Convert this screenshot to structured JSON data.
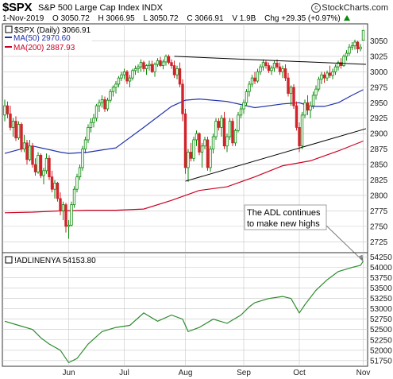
{
  "header": {
    "symbol": "$SPX",
    "name": "S&P 500 Large Cap Index INDX",
    "logo": "StockCharts.com",
    "logo_icon": "copyright-icon",
    "date": "1-Nov-2019",
    "open": "O 3050.72",
    "high": "H 3066.95",
    "low": "L 3050.72",
    "close": "C 3066.91",
    "volume": "V 1.9B",
    "change": "Chg +29.35 (+0.97%)",
    "up_color": "#0a8a0a"
  },
  "legend": {
    "price": "$SPX (Daily) 3066.91",
    "ma50": "MA(50) 2970.60",
    "ma200": "MA(200) 2887.93"
  },
  "colors": {
    "up": "#0a8a0a",
    "down": "#d2222a",
    "ma50": "#2233aa",
    "ma200": "#cc0022",
    "adl": "#2e8b2e",
    "grid": "#c8c8c8"
  },
  "chart_data": [
    {
      "type": "candlestick",
      "title": "$SPX (Daily) 3066.91",
      "x_months": [
        {
          "label": "Jun",
          "day": 23
        },
        {
          "label": "Jul",
          "day": 43
        },
        {
          "label": "Aug",
          "day": 65
        },
        {
          "label": "Sep",
          "day": 86
        },
        {
          "label": "Oct",
          "day": 106
        },
        {
          "label": "Nov",
          "day": 129
        }
      ],
      "x_range": [
        0,
        130
      ],
      "ylim": [
        2710,
        3075
      ],
      "yticks": [
        2725,
        2750,
        2775,
        2800,
        2825,
        2850,
        2875,
        2900,
        2925,
        2950,
        2975,
        3000,
        3025,
        3050
      ],
      "grid": true,
      "series": [
        {
          "name": "MA(50) 2970.60",
          "x": [
            0,
            10,
            20,
            23,
            30,
            40,
            50,
            60,
            65,
            70,
            80,
            90,
            100,
            106,
            110,
            115,
            120,
            125,
            129
          ],
          "y": [
            2868,
            2880,
            2870,
            2868,
            2870,
            2877,
            2910,
            2944,
            2954,
            2956,
            2952,
            2942,
            2948,
            2950,
            2944,
            2944,
            2950,
            2962,
            2971
          ]
        },
        {
          "name": "MA(200) 2887.93",
          "x": [
            0,
            10,
            20,
            30,
            40,
            50,
            60,
            70,
            80,
            90,
            100,
            110,
            120,
            129
          ],
          "y": [
            2772,
            2773,
            2775,
            2776,
            2776,
            2778,
            2792,
            2808,
            2814,
            2830,
            2848,
            2856,
            2872,
            2888
          ]
        }
      ],
      "candles": [
        [
          0,
          2930,
          2955,
          2920,
          2945
        ],
        [
          1,
          2945,
          2952,
          2925,
          2932
        ],
        [
          2,
          2932,
          2945,
          2905,
          2910
        ],
        [
          3,
          2910,
          2925,
          2895,
          2920
        ],
        [
          4,
          2920,
          2928,
          2888,
          2893
        ],
        [
          5,
          2893,
          2920,
          2890,
          2915
        ],
        [
          6,
          2915,
          2918,
          2870,
          2875
        ],
        [
          7,
          2875,
          2898,
          2870,
          2885
        ],
        [
          8,
          2885,
          2890,
          2850,
          2858
        ],
        [
          9,
          2858,
          2890,
          2855,
          2880
        ],
        [
          10,
          2880,
          2885,
          2845,
          2850
        ],
        [
          11,
          2850,
          2860,
          2832,
          2838
        ],
        [
          12,
          2838,
          2870,
          2835,
          2865
        ],
        [
          13,
          2865,
          2868,
          2828,
          2832
        ],
        [
          14,
          2832,
          2845,
          2818,
          2840
        ],
        [
          15,
          2840,
          2868,
          2835,
          2860
        ],
        [
          16,
          2860,
          2865,
          2825,
          2830
        ],
        [
          17,
          2830,
          2840,
          2805,
          2810
        ],
        [
          18,
          2810,
          2825,
          2795,
          2820
        ],
        [
          19,
          2820,
          2822,
          2790,
          2795
        ],
        [
          20,
          2795,
          2805,
          2768,
          2775
        ],
        [
          21,
          2775,
          2790,
          2760,
          2785
        ],
        [
          22,
          2785,
          2788,
          2740,
          2750
        ],
        [
          23,
          2750,
          2760,
          2730,
          2752
        ],
        [
          24,
          2752,
          2790,
          2750,
          2785
        ],
        [
          25,
          2785,
          2815,
          2780,
          2810
        ],
        [
          26,
          2810,
          2835,
          2805,
          2830
        ],
        [
          27,
          2830,
          2850,
          2825,
          2845
        ],
        [
          28,
          2845,
          2880,
          2840,
          2875
        ],
        [
          29,
          2875,
          2895,
          2868,
          2890
        ],
        [
          30,
          2890,
          2915,
          2885,
          2910
        ],
        [
          31,
          2910,
          2925,
          2902,
          2918
        ],
        [
          32,
          2918,
          2932,
          2910,
          2925
        ],
        [
          33,
          2925,
          2948,
          2920,
          2945
        ],
        [
          34,
          2945,
          2955,
          2935,
          2950
        ],
        [
          35,
          2950,
          2962,
          2942,
          2955
        ],
        [
          36,
          2955,
          2960,
          2935,
          2940
        ],
        [
          37,
          2940,
          2958,
          2936,
          2954
        ],
        [
          38,
          2954,
          2972,
          2950,
          2968
        ],
        [
          39,
          2968,
          2978,
          2960,
          2975
        ],
        [
          40,
          2975,
          2985,
          2965,
          2980
        ],
        [
          41,
          2980,
          2993,
          2975,
          2990
        ],
        [
          42,
          2990,
          3000,
          2985,
          2995
        ],
        [
          43,
          2995,
          3005,
          2988,
          3000
        ],
        [
          44,
          3000,
          3003,
          2980,
          2985
        ],
        [
          45,
          2985,
          2995,
          2975,
          2990
        ],
        [
          46,
          2990,
          3005,
          2986,
          3002
        ],
        [
          47,
          3002,
          3010,
          2995,
          3005
        ],
        [
          48,
          3005,
          3012,
          2998,
          3008
        ],
        [
          49,
          3008,
          3020,
          3000,
          3015
        ],
        [
          50,
          3015,
          3018,
          3000,
          3005
        ],
        [
          51,
          3005,
          3012,
          2995,
          3010
        ],
        [
          52,
          3010,
          3018,
          3002,
          3012
        ],
        [
          53,
          3012,
          3018,
          2998,
          3000
        ],
        [
          54,
          3000,
          3015,
          2992,
          3012
        ],
        [
          55,
          3012,
          3022,
          3008,
          3018
        ],
        [
          56,
          3018,
          3024,
          3008,
          3010
        ],
        [
          57,
          3010,
          3020,
          3004,
          3016
        ],
        [
          58,
          3016,
          3028,
          3010,
          3025
        ],
        [
          59,
          3025,
          3028,
          3012,
          3015
        ],
        [
          60,
          3015,
          3020,
          3005,
          3010
        ],
        [
          61,
          3010,
          3018,
          2990,
          2995
        ],
        [
          62,
          2995,
          3010,
          2988,
          3005
        ],
        [
          63,
          3005,
          3015,
          2975,
          2980
        ],
        [
          64,
          2980,
          2988,
          2920,
          2932
        ],
        [
          65,
          2932,
          2940,
          2835,
          2845
        ],
        [
          66,
          2845,
          2875,
          2822,
          2870
        ],
        [
          67,
          2870,
          2885,
          2855,
          2860
        ],
        [
          68,
          2860,
          2895,
          2855,
          2890
        ],
        [
          69,
          2890,
          2905,
          2880,
          2900
        ],
        [
          70,
          2900,
          2902,
          2865,
          2870
        ],
        [
          71,
          2870,
          2885,
          2845,
          2880
        ],
        [
          72,
          2880,
          2895,
          2875,
          2890
        ],
        [
          73,
          2890,
          2895,
          2840,
          2845
        ],
        [
          74,
          2845,
          2880,
          2838,
          2875
        ],
        [
          75,
          2875,
          2900,
          2868,
          2895
        ],
        [
          76,
          2895,
          2925,
          2890,
          2920
        ],
        [
          77,
          2920,
          2925,
          2905,
          2910
        ],
        [
          78,
          2910,
          2930,
          2895,
          2925
        ],
        [
          79,
          2925,
          2935,
          2875,
          2880
        ],
        [
          80,
          2880,
          2900,
          2870,
          2895
        ],
        [
          81,
          2895,
          2925,
          2890,
          2920
        ],
        [
          82,
          2920,
          2925,
          2880,
          2885
        ],
        [
          83,
          2885,
          2908,
          2880,
          2905
        ],
        [
          84,
          2905,
          2935,
          2902,
          2930
        ],
        [
          85,
          2930,
          2945,
          2925,
          2940
        ],
        [
          86,
          2940,
          2955,
          2932,
          2950
        ],
        [
          87,
          2950,
          2972,
          2946,
          2968
        ],
        [
          88,
          2968,
          2985,
          2960,
          2980
        ],
        [
          89,
          2980,
          2995,
          2975,
          2990
        ],
        [
          90,
          2990,
          3000,
          2980,
          2985
        ],
        [
          91,
          2985,
          3005,
          2982,
          3000
        ],
        [
          92,
          3000,
          3012,
          2995,
          3008
        ],
        [
          93,
          3008,
          3020,
          3002,
          3015
        ],
        [
          94,
          3015,
          3018,
          3005,
          3010
        ],
        [
          95,
          3010,
          3015,
          2998,
          3002
        ],
        [
          96,
          3002,
          3010,
          2995,
          3006
        ],
        [
          97,
          3006,
          3018,
          3000,
          3014
        ],
        [
          98,
          3014,
          3020,
          3005,
          3008
        ],
        [
          99,
          3008,
          3015,
          2995,
          3000
        ],
        [
          100,
          3000,
          3010,
          2990,
          3005
        ],
        [
          101,
          3005,
          3012,
          2985,
          2990
        ],
        [
          102,
          2990,
          2998,
          2960,
          2965
        ],
        [
          103,
          2965,
          2978,
          2945,
          2975
        ],
        [
          104,
          2975,
          2980,
          2940,
          2945
        ],
        [
          105,
          2945,
          2952,
          2905,
          2910
        ],
        [
          106,
          2910,
          2918,
          2870,
          2880
        ],
        [
          107,
          2880,
          2935,
          2875,
          2930
        ],
        [
          108,
          2930,
          2955,
          2925,
          2950
        ],
        [
          109,
          2950,
          2962,
          2930,
          2938
        ],
        [
          110,
          2938,
          2952,
          2925,
          2945
        ],
        [
          111,
          2945,
          2968,
          2940,
          2962
        ],
        [
          112,
          2962,
          2978,
          2955,
          2972
        ],
        [
          113,
          2972,
          2992,
          2968,
          2988
        ],
        [
          114,
          2988,
          3000,
          2980,
          2995
        ],
        [
          115,
          2995,
          3000,
          2982,
          2990
        ],
        [
          116,
          2990,
          3002,
          2985,
          2998
        ],
        [
          117,
          2998,
          3010,
          2990,
          2994
        ],
        [
          118,
          2994,
          3005,
          2988,
          3000
        ],
        [
          119,
          3000,
          3012,
          2995,
          3008
        ],
        [
          120,
          3008,
          3018,
          3002,
          3015
        ],
        [
          121,
          3015,
          3022,
          3005,
          3010
        ],
        [
          122,
          3010,
          3028,
          3008,
          3025
        ],
        [
          123,
          3025,
          3035,
          3018,
          3030
        ],
        [
          124,
          3030,
          3045,
          3026,
          3040
        ],
        [
          125,
          3040,
          3048,
          3035,
          3042
        ],
        [
          126,
          3042,
          3052,
          3036,
          3048
        ],
        [
          127,
          3048,
          3050,
          3030,
          3037
        ],
        [
          128,
          3037,
          3045,
          3033,
          3040
        ],
        [
          129,
          3051,
          3067,
          3051,
          3067
        ]
      ],
      "trendlines": [
        {
          "x": [
            61,
            130
          ],
          "y": [
            3025,
            3012
          ]
        },
        {
          "x": [
            65,
            130
          ],
          "y": [
            2823,
            2908
          ]
        }
      ]
    },
    {
      "type": "line",
      "title": "!ADLINENYA 54153.80",
      "series": [
        {
          "name": "!ADLINENYA 54153.80",
          "x": [
            0,
            5,
            10,
            13,
            16,
            20,
            23,
            26,
            30,
            35,
            40,
            45,
            50,
            55,
            60,
            64,
            66,
            70,
            75,
            80,
            85,
            88,
            90,
            95,
            100,
            103,
            106,
            108,
            112,
            116,
            118,
            120,
            125,
            128,
            129
          ],
          "y": [
            52700,
            52600,
            52500,
            52300,
            52150,
            52000,
            51700,
            51800,
            52150,
            52450,
            52550,
            52600,
            52900,
            52700,
            52850,
            52750,
            52450,
            52550,
            52750,
            52650,
            52850,
            53050,
            53150,
            53250,
            53300,
            53250,
            52900,
            53100,
            53450,
            53700,
            53800,
            53900,
            54000,
            54050,
            54150
          ]
        }
      ],
      "ylim": [
        51650,
        54300
      ],
      "yticks": [
        51750,
        52000,
        52250,
        52500,
        52750,
        53000,
        53250,
        53500,
        53750,
        54000,
        54250
      ],
      "grid": true
    }
  ],
  "annotation": {
    "line1": "The ADL continues",
    "line2": "to make new highs"
  }
}
